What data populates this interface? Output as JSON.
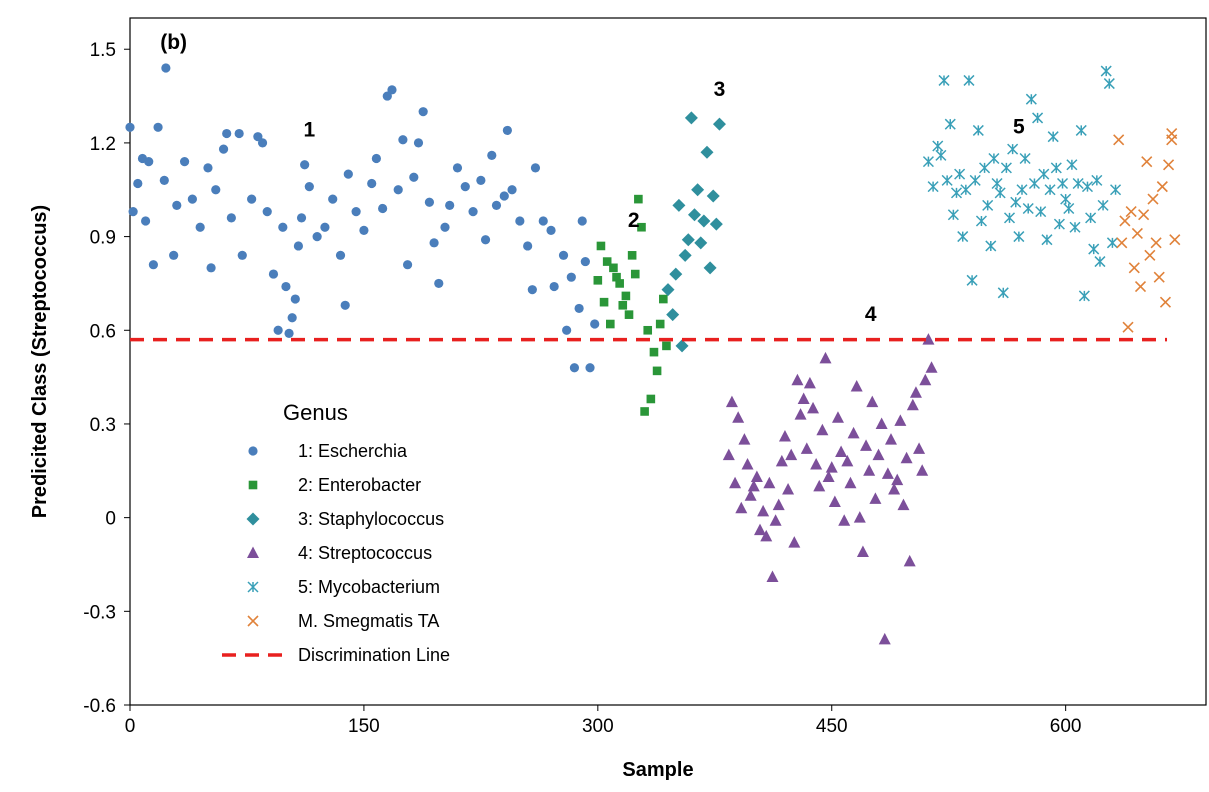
{
  "chart_data": {
    "type": "scatter",
    "xlabel": "Sample",
    "ylabel": "Predicited Class (Streptococcus)",
    "xlim": [
      0,
      690
    ],
    "ylim": [
      -0.6,
      1.6
    ],
    "xticks": [
      "0",
      "150",
      "300",
      "450",
      "600"
    ],
    "xtick_values": [
      0,
      150,
      300,
      450,
      600
    ],
    "yticks": [
      "-0.6",
      "-0.3",
      "0",
      "0.3",
      "0.6",
      "0.9",
      "1.2",
      "1.5"
    ],
    "ytick_values": [
      -0.6,
      -0.3,
      0,
      0.3,
      0.6,
      0.9,
      1.2,
      1.5
    ],
    "grid": false,
    "legend_position": "lower-left",
    "legend_title": "Genus",
    "annotations": [
      {
        "text": "(b)",
        "x": 28,
        "y": 1.5
      },
      {
        "text": "1",
        "x": 115,
        "y": 1.22
      },
      {
        "text": "2",
        "x": 323,
        "y": 0.93
      },
      {
        "text": "3",
        "x": 378,
        "y": 1.35
      },
      {
        "text": "4",
        "x": 475,
        "y": 0.63
      },
      {
        "text": "5",
        "x": 570,
        "y": 1.23
      }
    ],
    "colors": {
      "escherchia": "#4a7ebb",
      "enterobacter": "#2a9638",
      "staphylococcus": "#2f8f9d",
      "streptococcus": "#7c4f9a",
      "mycobacterium": "#3aa0b8",
      "smegmatis": "#e0823a",
      "discrimination": "#e8201f"
    },
    "series": [
      {
        "name": "1: Escherchia",
        "marker": "circle",
        "color": "#4a7ebb",
        "points": [
          [
            0,
            1.25
          ],
          [
            2,
            0.98
          ],
          [
            5,
            1.07
          ],
          [
            8,
            1.15
          ],
          [
            10,
            0.95
          ],
          [
            12,
            1.14
          ],
          [
            15,
            0.81
          ],
          [
            18,
            1.25
          ],
          [
            22,
            1.08
          ],
          [
            23,
            1.44
          ],
          [
            28,
            0.84
          ],
          [
            30,
            1.0
          ],
          [
            35,
            1.14
          ],
          [
            40,
            1.02
          ],
          [
            45,
            0.93
          ],
          [
            50,
            1.12
          ],
          [
            52,
            0.8
          ],
          [
            55,
            1.05
          ],
          [
            60,
            1.18
          ],
          [
            62,
            1.23
          ],
          [
            65,
            0.96
          ],
          [
            70,
            1.23
          ],
          [
            72,
            0.84
          ],
          [
            78,
            1.02
          ],
          [
            82,
            1.22
          ],
          [
            85,
            1.2
          ],
          [
            88,
            0.98
          ],
          [
            92,
            0.78
          ],
          [
            95,
            0.6
          ],
          [
            98,
            0.93
          ],
          [
            100,
            0.74
          ],
          [
            102,
            0.59
          ],
          [
            104,
            0.64
          ],
          [
            106,
            0.7
          ],
          [
            108,
            0.87
          ],
          [
            110,
            0.96
          ],
          [
            112,
            1.13
          ],
          [
            115,
            1.06
          ],
          [
            120,
            0.9
          ],
          [
            125,
            0.93
          ],
          [
            130,
            1.02
          ],
          [
            135,
            0.84
          ],
          [
            138,
            0.68
          ],
          [
            140,
            1.1
          ],
          [
            145,
            0.98
          ],
          [
            150,
            0.92
          ],
          [
            155,
            1.07
          ],
          [
            158,
            1.15
          ],
          [
            162,
            0.99
          ],
          [
            165,
            1.35
          ],
          [
            168,
            1.37
          ],
          [
            172,
            1.05
          ],
          [
            175,
            1.21
          ],
          [
            178,
            0.81
          ],
          [
            182,
            1.09
          ],
          [
            185,
            1.2
          ],
          [
            188,
            1.3
          ],
          [
            192,
            1.01
          ],
          [
            195,
            0.88
          ],
          [
            198,
            0.75
          ],
          [
            202,
            0.93
          ],
          [
            205,
            1.0
          ],
          [
            210,
            1.12
          ],
          [
            215,
            1.06
          ],
          [
            220,
            0.98
          ],
          [
            225,
            1.08
          ],
          [
            228,
            0.89
          ],
          [
            232,
            1.16
          ],
          [
            235,
            1.0
          ],
          [
            240,
            1.03
          ],
          [
            242,
            1.24
          ],
          [
            245,
            1.05
          ],
          [
            250,
            0.95
          ],
          [
            255,
            0.87
          ],
          [
            258,
            0.73
          ],
          [
            260,
            1.12
          ],
          [
            265,
            0.95
          ],
          [
            270,
            0.92
          ],
          [
            272,
            0.74
          ],
          [
            278,
            0.84
          ],
          [
            280,
            0.6
          ],
          [
            283,
            0.77
          ],
          [
            285,
            0.48
          ],
          [
            288,
            0.67
          ],
          [
            290,
            0.95
          ],
          [
            292,
            0.82
          ],
          [
            295,
            0.48
          ],
          [
            298,
            0.62
          ]
        ]
      },
      {
        "name": "2: Enterobacter",
        "marker": "square",
        "color": "#2a9638",
        "points": [
          [
            300,
            0.76
          ],
          [
            302,
            0.87
          ],
          [
            304,
            0.69
          ],
          [
            306,
            0.82
          ],
          [
            308,
            0.62
          ],
          [
            310,
            0.8
          ],
          [
            312,
            0.77
          ],
          [
            314,
            0.75
          ],
          [
            316,
            0.68
          ],
          [
            318,
            0.71
          ],
          [
            320,
            0.65
          ],
          [
            322,
            0.84
          ],
          [
            324,
            0.78
          ],
          [
            326,
            1.02
          ],
          [
            328,
            0.93
          ],
          [
            330,
            0.34
          ],
          [
            332,
            0.6
          ],
          [
            334,
            0.38
          ],
          [
            336,
            0.53
          ],
          [
            338,
            0.47
          ],
          [
            340,
            0.62
          ],
          [
            342,
            0.7
          ],
          [
            344,
            0.55
          ]
        ]
      },
      {
        "name": "3: Staphylococcus",
        "marker": "diamond",
        "color": "#2f8f9d",
        "points": [
          [
            345,
            0.73
          ],
          [
            348,
            0.65
          ],
          [
            350,
            0.78
          ],
          [
            352,
            1.0
          ],
          [
            354,
            0.55
          ],
          [
            356,
            0.84
          ],
          [
            358,
            0.89
          ],
          [
            360,
            1.28
          ],
          [
            362,
            0.97
          ],
          [
            364,
            1.05
          ],
          [
            366,
            0.88
          ],
          [
            368,
            0.95
          ],
          [
            370,
            1.17
          ],
          [
            372,
            0.8
          ],
          [
            374,
            1.03
          ],
          [
            376,
            0.94
          ],
          [
            378,
            1.26
          ]
        ]
      },
      {
        "name": "4: Streptococcus",
        "marker": "triangle",
        "color": "#7c4f9a",
        "points": [
          [
            384,
            0.2
          ],
          [
            386,
            0.37
          ],
          [
            388,
            0.11
          ],
          [
            390,
            0.32
          ],
          [
            392,
            0.03
          ],
          [
            394,
            0.25
          ],
          [
            396,
            0.17
          ],
          [
            398,
            0.07
          ],
          [
            400,
            0.1
          ],
          [
            402,
            0.13
          ],
          [
            404,
            -0.04
          ],
          [
            406,
            0.02
          ],
          [
            408,
            -0.06
          ],
          [
            410,
            0.11
          ],
          [
            412,
            -0.19
          ],
          [
            414,
            -0.01
          ],
          [
            416,
            0.04
          ],
          [
            418,
            0.18
          ],
          [
            420,
            0.26
          ],
          [
            422,
            0.09
          ],
          [
            424,
            0.2
          ],
          [
            426,
            -0.08
          ],
          [
            428,
            0.44
          ],
          [
            430,
            0.33
          ],
          [
            432,
            0.38
          ],
          [
            434,
            0.22
          ],
          [
            436,
            0.43
          ],
          [
            438,
            0.35
          ],
          [
            440,
            0.17
          ],
          [
            442,
            0.1
          ],
          [
            444,
            0.28
          ],
          [
            446,
            0.51
          ],
          [
            448,
            0.13
          ],
          [
            450,
            0.16
          ],
          [
            452,
            0.05
          ],
          [
            454,
            0.32
          ],
          [
            456,
            0.21
          ],
          [
            458,
            -0.01
          ],
          [
            460,
            0.18
          ],
          [
            462,
            0.11
          ],
          [
            464,
            0.27
          ],
          [
            466,
            0.42
          ],
          [
            468,
            0.0
          ],
          [
            470,
            -0.11
          ],
          [
            472,
            0.23
          ],
          [
            474,
            0.15
          ],
          [
            476,
            0.37
          ],
          [
            478,
            0.06
          ],
          [
            480,
            0.2
          ],
          [
            482,
            0.3
          ],
          [
            484,
            -0.39
          ],
          [
            486,
            0.14
          ],
          [
            488,
            0.25
          ],
          [
            490,
            0.09
          ],
          [
            492,
            0.12
          ],
          [
            494,
            0.31
          ],
          [
            496,
            0.04
          ],
          [
            498,
            0.19
          ],
          [
            500,
            -0.14
          ],
          [
            502,
            0.36
          ],
          [
            504,
            0.4
          ],
          [
            506,
            0.22
          ],
          [
            508,
            0.15
          ],
          [
            510,
            0.44
          ],
          [
            512,
            0.57
          ],
          [
            514,
            0.48
          ]
        ]
      },
      {
        "name": "5: Mycobacterium",
        "marker": "asterisk",
        "color": "#3aa0b8",
        "points": [
          [
            512,
            1.14
          ],
          [
            515,
            1.06
          ],
          [
            518,
            1.19
          ],
          [
            520,
            1.16
          ],
          [
            522,
            1.4
          ],
          [
            524,
            1.08
          ],
          [
            526,
            1.26
          ],
          [
            528,
            0.97
          ],
          [
            530,
            1.04
          ],
          [
            532,
            1.1
          ],
          [
            534,
            0.9
          ],
          [
            536,
            1.05
          ],
          [
            538,
            1.4
          ],
          [
            540,
            0.76
          ],
          [
            542,
            1.08
          ],
          [
            544,
            1.24
          ],
          [
            546,
            0.95
          ],
          [
            548,
            1.12
          ],
          [
            550,
            1.0
          ],
          [
            552,
            0.87
          ],
          [
            554,
            1.15
          ],
          [
            556,
            1.07
          ],
          [
            558,
            1.04
          ],
          [
            560,
            0.72
          ],
          [
            562,
            1.12
          ],
          [
            564,
            0.96
          ],
          [
            566,
            1.18
          ],
          [
            568,
            1.01
          ],
          [
            570,
            0.9
          ],
          [
            572,
            1.05
          ],
          [
            574,
            1.15
          ],
          [
            576,
            0.99
          ],
          [
            578,
            1.34
          ],
          [
            580,
            1.07
          ],
          [
            582,
            1.28
          ],
          [
            584,
            0.98
          ],
          [
            586,
            1.1
          ],
          [
            588,
            0.89
          ],
          [
            590,
            1.05
          ],
          [
            592,
            1.22
          ],
          [
            594,
            1.12
          ],
          [
            596,
            0.94
          ],
          [
            598,
            1.07
          ],
          [
            600,
            1.02
          ],
          [
            602,
            0.99
          ],
          [
            604,
            1.13
          ],
          [
            606,
            0.93
          ],
          [
            608,
            1.07
          ],
          [
            610,
            1.24
          ],
          [
            612,
            0.71
          ],
          [
            614,
            1.06
          ],
          [
            616,
            0.96
          ],
          [
            618,
            0.86
          ],
          [
            620,
            1.08
          ],
          [
            622,
            0.82
          ],
          [
            624,
            1.0
          ],
          [
            626,
            1.43
          ],
          [
            628,
            1.39
          ],
          [
            630,
            0.88
          ],
          [
            632,
            1.05
          ]
        ]
      },
      {
        "name": "M. Smegmatis TA",
        "marker": "cross",
        "color": "#e0823a",
        "points": [
          [
            634,
            1.21
          ],
          [
            636,
            0.88
          ],
          [
            638,
            0.95
          ],
          [
            640,
            0.61
          ],
          [
            642,
            0.98
          ],
          [
            644,
            0.8
          ],
          [
            646,
            0.91
          ],
          [
            648,
            0.74
          ],
          [
            650,
            0.97
          ],
          [
            652,
            1.14
          ],
          [
            654,
            0.84
          ],
          [
            656,
            1.02
          ],
          [
            658,
            0.88
          ],
          [
            660,
            0.77
          ],
          [
            662,
            1.06
          ],
          [
            664,
            0.69
          ],
          [
            666,
            1.13
          ],
          [
            668,
            1.21
          ],
          [
            670,
            0.89
          ],
          [
            668,
            1.23
          ]
        ]
      }
    ],
    "discrimination_line": {
      "name": "Discrimination Line",
      "y": 0.57,
      "x_range": [
        0,
        665
      ],
      "color": "#e8201f"
    }
  }
}
